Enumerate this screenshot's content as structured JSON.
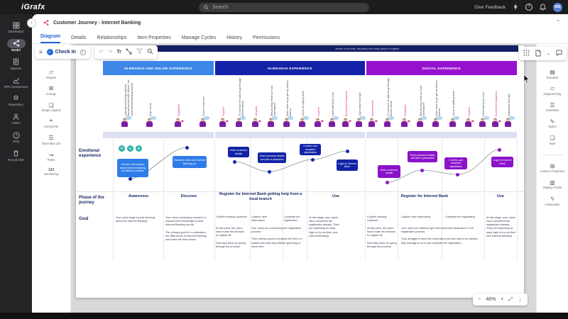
{
  "topbar": {
    "logo": "iGrafx",
    "search_placeholder": "Search",
    "give_feedback": "Give Feedback",
    "avatar_initials": "MS"
  },
  "left_nav": {
    "active": "Model",
    "items": [
      {
        "label": "Dashboard",
        "icon": "dashboard-grid-icon"
      },
      {
        "label": "Model",
        "icon": "model-share-icon"
      },
      {
        "label": "Reports",
        "icon": "reports-icon"
      },
      {
        "label": "RPA Assessment",
        "icon": "rpa-chart-icon"
      },
      {
        "label": "Repository",
        "icon": "gear-icon"
      },
      {
        "label": "Admin",
        "icon": "admin-user-icon"
      },
      {
        "label": "Help",
        "icon": "help-icon"
      },
      {
        "label": "Recycle Bin",
        "icon": "trash-icon"
      }
    ]
  },
  "header": {
    "title": "Customer Journey - Internet Banking"
  },
  "tabs": {
    "active": "Diagram",
    "items": [
      {
        "label": "Diagram"
      },
      {
        "label": "Details"
      },
      {
        "label": "Relationships"
      },
      {
        "label": "Item Properties"
      },
      {
        "label": "Manage Cycles"
      },
      {
        "label": "History"
      },
      {
        "label": "Permissions"
      }
    ]
  },
  "toolbar": {
    "check_in": "Check In",
    "text_tool": "Tr"
  },
  "left_tools": {
    "items": [
      {
        "label": "Shapes"
      },
      {
        "label": "Arrange"
      },
      {
        "label": "Shape Legend"
      },
      {
        "label": "Comments"
      },
      {
        "label": "Describes List"
      },
      {
        "label": "Paths"
      },
      {
        "label": "Numbering",
        "icon_text": "123"
      }
    ]
  },
  "right_tools": {
    "items": [
      {
        "label": "Narrative"
      },
      {
        "label": "Diagramming"
      },
      {
        "label": "Describes"
      },
      {
        "label": "Styles"
      },
      {
        "label": "Note"
      },
      {
        "label": "Custom Properties"
      },
      {
        "label": "Display Fields"
      },
      {
        "label": "Automation"
      }
    ]
  },
  "zoom_widget": {
    "level": "46%"
  },
  "diagram": {
    "banner_text": "sense of security, simplicity and easy steps to register",
    "row_labels": {
      "emotional": "Emotional experience",
      "phase": "Phase of the journey",
      "goal": "Goal"
    },
    "colors": {
      "band1": "#3d87e6",
      "band2": "#1322a8",
      "band3": "#9712cf",
      "box1": "#2e7ce8",
      "box2": "#1123a6",
      "box3": "#8a12c9",
      "node_blue": "#1226aa",
      "node_purple": "#8a12c9",
      "pink": "#e0218a",
      "teal": "#2ab3a6",
      "banner": "#111f63"
    },
    "bands": [
      {
        "title": "IN-BRANCH AND ONLINE EXPERIENCE",
        "personas": [
          {
            "quote": "I just opened a High Interest Saving account with XBank. I do need Internet Banking access",
            "pink": false
          },
          {
            "quote": "I'll go online",
            "pink": false
          },
          {
            "quote": "Registered",
            "pink": true
          },
          {
            "quote": "There's a lot here",
            "pink": false
          }
        ],
        "boxes": [
          "Receive information about Internet Banking via different platform",
          "Research what can Internet Banking do"
        ]
      },
      {
        "title": "IN-BRANCH EXPERIENCE",
        "personas": [
          {
            "quote": "Hopeful",
            "pink": true
          },
          {
            "quote": "I'm not sure I'm able to go through all this hassle",
            "pink": false
          },
          {
            "quote": "Intrigued",
            "pink": true
          },
          {
            "quote": "Why do they need so much information?",
            "pink": false
          },
          {
            "quote": "Now I have to go get my drivers license",
            "pink": false
          },
          {
            "quote": "I think I'm getting there",
            "pink": false
          },
          {
            "quote": "Hopeful",
            "pink": true
          },
          {
            "quote": "Can't wait to try it out",
            "pink": false
          },
          {
            "quote": "Excited & Empowered",
            "pink": true
          },
          {
            "quote": "Login wasn't too bad",
            "pink": false
          }
        ],
        "boxes": [
          "Enter customer details",
          "Enter personal details and pick a password",
          "Confirm and complete registration",
          "Login to Internet Bank"
        ]
      },
      {
        "title": "DIGITAL EXPERIENCE",
        "personas": [
          {
            "quote": "Overwhelmed",
            "pink": true
          },
          {
            "quote": "I'm not sure I'm able to go through all this hassle",
            "pink": false
          },
          {
            "quote": "Frustrated",
            "pink": true
          },
          {
            "quote": "Why do they need so much information?",
            "pink": false
          },
          {
            "quote": "Now I have to go get my drivers license",
            "pink": false
          },
          {
            "quote": "I think I'm getting there",
            "pink": false
          },
          {
            "quote": "Hopeful",
            "pink": true
          },
          {
            "quote": "Can't wait to try it out",
            "pink": false
          },
          {
            "quote": "Excited & Empowered",
            "pink": true
          },
          {
            "quote": "Impressed! Not bad",
            "pink": false
          }
        ],
        "boxes": [
          "Enter customer details",
          "Enter personal details and pick a password",
          "Confirm and complete registration",
          "Login to Internet Bank"
        ]
      }
    ],
    "phases": [
      {
        "label": "Awareness",
        "goal": "Your users begin by just learning about the Internet Banking"
      },
      {
        "label": "Discover",
        "goal": "Your users conducting research to expand their knowledge of what Internet Banking can do.\n\nThe primary goal is to understand the differences of Internet Banking and make the final choice"
      },
      {
        "label": "Register for Internet Bank getting help from a local branch",
        "subcolumns": [
          "Confirm existing customer",
          "Capture user information",
          "Complete the registration"
        ],
        "goals": [
          "At this point, the users have made the decision to register IB.\n\nNow they focus on going through the process.",
          "Your users are conducting the registration process.\n\nTheir primary goal is complete the test in a simple and easy way without spending to much time."
        ]
      },
      {
        "label": "Use",
        "goal": "At this stage, your users have completed the registration already. They are expecting an easy login to try out their new Internet Banking"
      },
      {
        "label": "Register for Internet Bank",
        "subcolumns": [
          "Confirm existing customer",
          "Capture user information",
          "Complete the registration"
        ],
        "goals": [
          "At this point, the users have made the decision to register IB.\n\nNow they focus on going through the process.",
          "Your users are afraid to type their personal information in the registration process.\n\nThey struggle to input the information but with help of an advisor, they manage to do it and complete the registration."
        ]
      },
      {
        "label": "Use",
        "goal": "At this stage, your users have completed the registration already. They are expecting an easy login to try out their new Internet Banking"
      }
    ]
  }
}
